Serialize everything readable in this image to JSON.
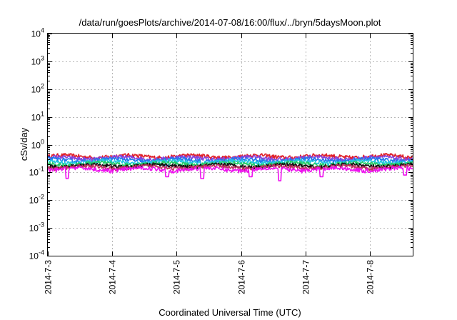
{
  "chart_data": {
    "type": "line",
    "title": "/data/run/goesPlots/archive/2014-07-08/16:00/flux/../bryn/5daysMoon.plot",
    "xlabel": "Coordinated Universal Time (UTC)",
    "ylabel": "cSv/day",
    "yscale": "log",
    "ylim": [
      0.0001,
      10000
    ],
    "xlim": [
      "2014-07-03",
      "2014-07-08 16:00"
    ],
    "x_ticks": [
      "2014-7-3",
      "2014-7-4",
      "2014-7-5",
      "2014-7-6",
      "2014-7-7",
      "2014-7-8"
    ],
    "y_ticks": [
      {
        "base": "10",
        "exp": "-4"
      },
      {
        "base": "10",
        "exp": "-3"
      },
      {
        "base": "10",
        "exp": "-2"
      },
      {
        "base": "10",
        "exp": "-1"
      },
      {
        "base": "10",
        "exp": "0"
      },
      {
        "base": "10",
        "exp": "1"
      },
      {
        "base": "10",
        "exp": "2"
      },
      {
        "base": "10",
        "exp": "3"
      },
      {
        "base": "10",
        "exp": "4"
      }
    ],
    "grid": true,
    "series": [
      {
        "color": "#e0202a",
        "level": 0.38,
        "dips": []
      },
      {
        "color": "#8844dd",
        "level": 0.33,
        "dips": []
      },
      {
        "color": "#2277ee",
        "level": 0.28,
        "dips": [
          [
            1.85,
            0.17
          ],
          [
            2.4,
            0.16
          ],
          [
            3.6,
            0.2
          ]
        ]
      },
      {
        "color": "#22c8e0",
        "level": 0.24,
        "dips": []
      },
      {
        "color": "#22cc66",
        "level": 0.205,
        "dips": []
      },
      {
        "color": "#111111",
        "level": 0.175,
        "dips": []
      },
      {
        "color": "#c03060",
        "level": 0.155,
        "dips": []
      },
      {
        "color": "#ee11ee",
        "level": 0.13,
        "dips": [
          [
            0.3,
            0.06
          ],
          [
            1.85,
            0.07
          ],
          [
            2.4,
            0.06
          ],
          [
            3.15,
            0.07
          ],
          [
            3.6,
            0.05
          ],
          [
            4.25,
            0.07
          ],
          [
            5.55,
            0.08
          ]
        ]
      }
    ]
  }
}
